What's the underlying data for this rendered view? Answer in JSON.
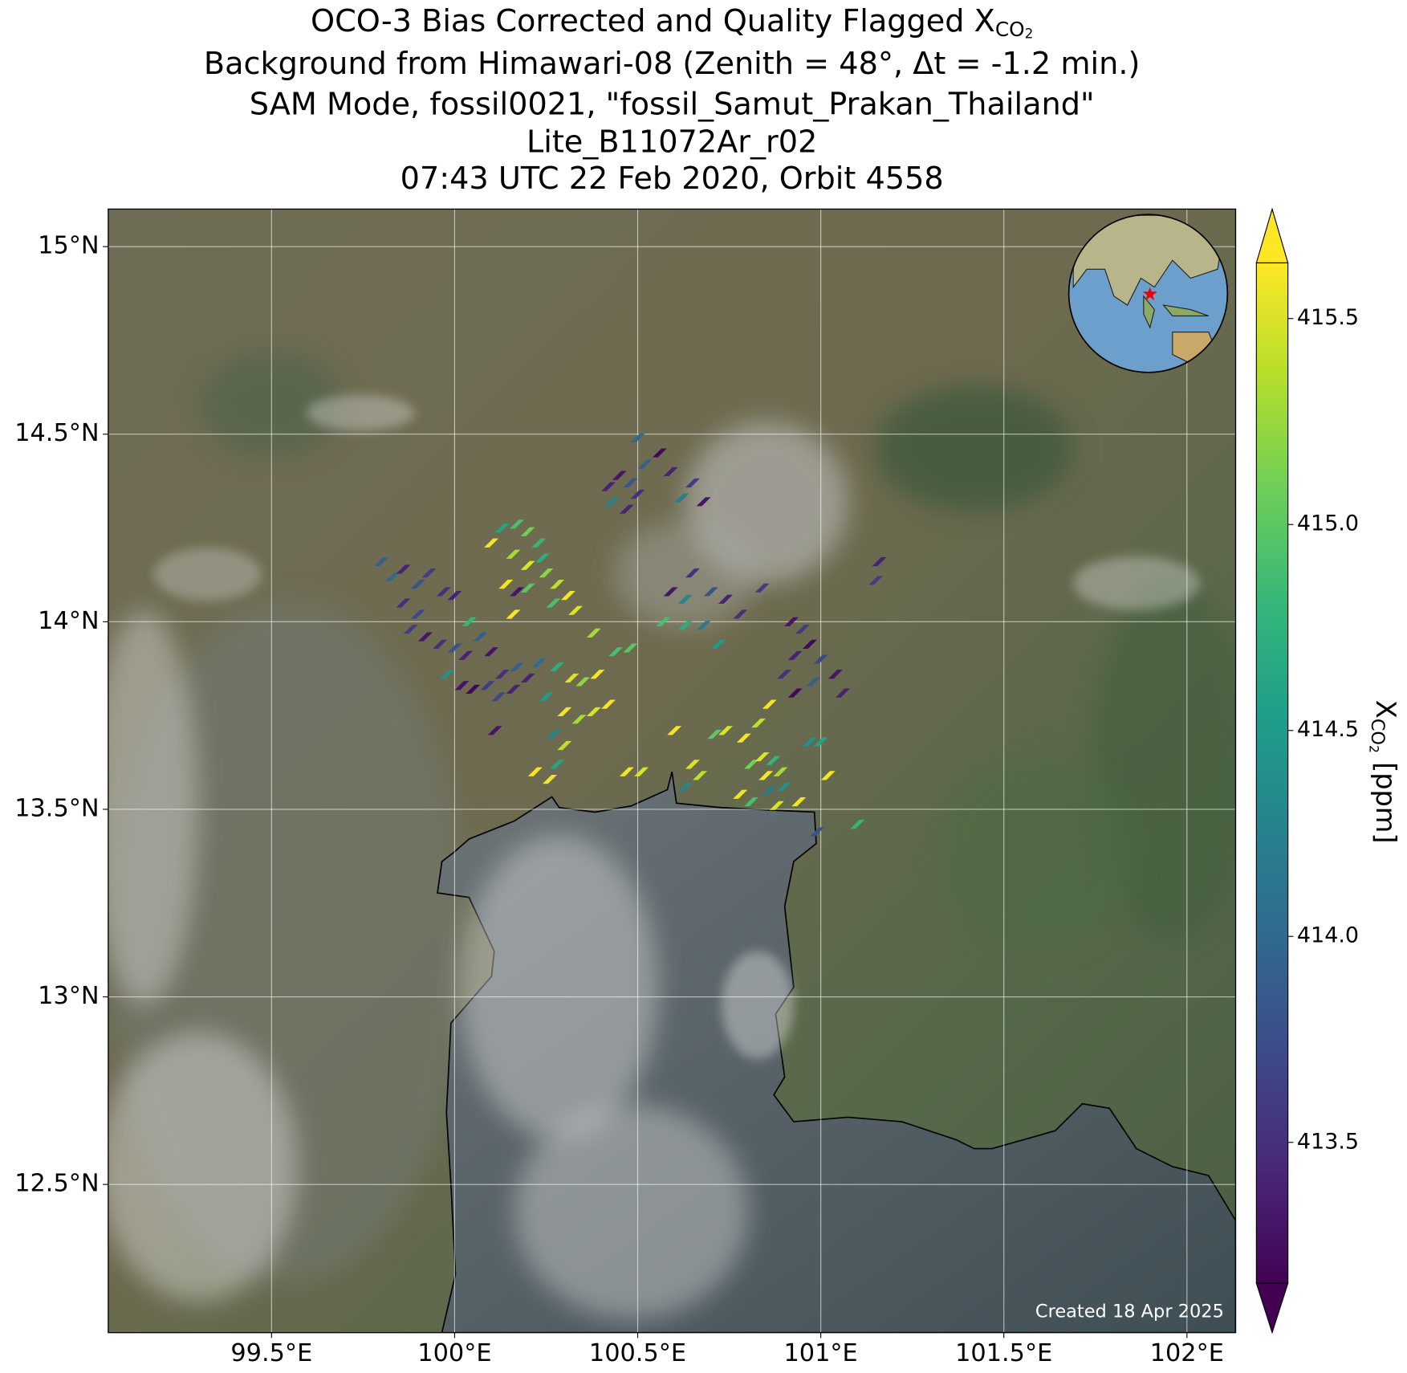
{
  "chart_data": {
    "type": "map",
    "title_lines": [
      {
        "text": "OCO-3 Bias Corrected and Quality Flagged X",
        "sub": "CO",
        "subsub": "2"
      },
      "Background from Himawari-08 (Zenith = 48°, Δt = -1.2 min.)",
      "SAM Mode, fossil0021, \"fossil_Samut_Prakan_Thailand\"",
      "Lite_B11072Ar_r02",
      "07:43 UTC 22 Feb 2020, Orbit 4558"
    ],
    "xlim": [
      99.054,
      102.133
    ],
    "ylim": [
      12.105,
      15.1
    ],
    "xticks": [
      {
        "value": 99.5,
        "label": "99.5°E"
      },
      {
        "value": 100,
        "label": "100°E"
      },
      {
        "value": 100.5,
        "label": "100.5°E"
      },
      {
        "value": 101,
        "label": "101°E"
      },
      {
        "value": 101.5,
        "label": "101.5°E"
      },
      {
        "value": 102,
        "label": "102°E"
      }
    ],
    "yticks": [
      {
        "value": 12.5,
        "label": "12.5°N"
      },
      {
        "value": 13,
        "label": "13°N"
      },
      {
        "value": 13.5,
        "label": "13.5°N"
      },
      {
        "value": 14,
        "label": "14°N"
      },
      {
        "value": 14.5,
        "label": "14.5°N"
      },
      {
        "value": 15,
        "label": "15°N"
      }
    ],
    "grid": true,
    "colorbar": {
      "clim": [
        413.158,
        415.635
      ],
      "ticks": [
        413.5,
        {
          "value": 414,
          "label": "414.0"
        },
        414.5,
        {
          "value": 415,
          "label": "415.0"
        },
        415.5
      ],
      "label": {
        "main": "X",
        "sub": "CO",
        "subsub": "2",
        "unit": "[ppm]"
      }
    },
    "annotation": "Created 18 Apr 2025",
    "soundings": {
      "lon": [
        99.8,
        99.83,
        99.86,
        99.9,
        99.93,
        99.97,
        100.0,
        99.86,
        99.9,
        100.04,
        99.88,
        99.92,
        99.96,
        100.0,
        100.03,
        100.07,
        100.1,
        99.98,
        100.02,
        100.05,
        100.09,
        100.13,
        100.17,
        100.2,
        100.23,
        100.12,
        100.16,
        100.11,
        100.1,
        100.13,
        100.17,
        100.2,
        100.23,
        100.16,
        100.2,
        100.24,
        100.14,
        100.17,
        100.2,
        100.25,
        100.28,
        100.31,
        100.33,
        100.27,
        100.16,
        100.38,
        100.28,
        100.32,
        100.35,
        100.39,
        100.25,
        100.3,
        100.34,
        100.38,
        100.42,
        100.27,
        100.3,
        100.28,
        100.22,
        100.26,
        100.48,
        100.44,
        100.42,
        100.45,
        100.48,
        100.5,
        100.43,
        100.47,
        100.52,
        100.56,
        100.59,
        100.62,
        100.65,
        100.68,
        100.5,
        100.59,
        100.63,
        100.65,
        100.7,
        100.74,
        100.78,
        100.84,
        100.57,
        100.63,
        100.68,
        100.72,
        100.92,
        100.95,
        100.97,
        100.93,
        101.0,
        100.9,
        100.98,
        101.04,
        101.06,
        100.93,
        100.47,
        100.51,
        100.6,
        100.65,
        100.67,
        100.63,
        100.71,
        100.74,
        100.79,
        100.83,
        100.86,
        100.81,
        100.84,
        100.87,
        100.85,
        100.89,
        100.86,
        100.9,
        100.78,
        100.81,
        100.88,
        100.94,
        100.97,
        101.0,
        101.02,
        101.16,
        101.15,
        101.1,
        100.99
      ],
      "lat": [
        14.16,
        14.12,
        14.14,
        14.1,
        14.13,
        14.08,
        14.07,
        14.05,
        14.02,
        14.0,
        13.98,
        13.96,
        13.94,
        13.93,
        13.91,
        13.96,
        13.92,
        13.86,
        13.83,
        13.82,
        13.83,
        13.86,
        13.88,
        13.85,
        13.89,
        13.8,
        13.82,
        13.71,
        14.21,
        14.25,
        14.26,
        14.24,
        14.21,
        14.18,
        14.15,
        14.17,
        14.1,
        14.08,
        14.09,
        14.13,
        14.1,
        14.07,
        14.03,
        14.05,
        14.02,
        13.97,
        13.88,
        13.85,
        13.84,
        13.86,
        13.8,
        13.76,
        13.74,
        13.76,
        13.78,
        13.7,
        13.67,
        13.62,
        13.6,
        13.58,
        13.93,
        13.92,
        14.36,
        14.39,
        14.37,
        14.34,
        14.32,
        14.3,
        14.42,
        14.45,
        14.4,
        14.33,
        14.37,
        14.32,
        14.49,
        14.08,
        14.06,
        14.13,
        14.08,
        14.06,
        14.02,
        14.09,
        14.0,
        13.99,
        13.99,
        13.94,
        14.0,
        13.98,
        13.94,
        13.91,
        13.9,
        13.86,
        13.84,
        13.86,
        13.81,
        13.81,
        13.6,
        13.6,
        13.71,
        13.62,
        13.59,
        13.56,
        13.7,
        13.71,
        13.69,
        13.73,
        13.78,
        13.62,
        13.64,
        13.63,
        13.59,
        13.6,
        13.55,
        13.56,
        13.54,
        13.52,
        13.51,
        13.52,
        13.68,
        13.68,
        13.59,
        14.16,
        14.11,
        13.46,
        13.44
      ],
      "xco2": [
        413.9,
        414.0,
        413.4,
        413.8,
        413.6,
        413.5,
        413.4,
        413.5,
        413.7,
        414.8,
        413.6,
        413.3,
        413.5,
        413.8,
        413.4,
        413.9,
        413.3,
        414.4,
        413.3,
        413.2,
        413.6,
        413.5,
        413.9,
        413.4,
        414.0,
        413.7,
        413.4,
        413.3,
        415.6,
        414.6,
        414.9,
        415.1,
        414.8,
        415.3,
        415.5,
        414.7,
        415.6,
        413.3,
        415.0,
        415.2,
        415.4,
        415.6,
        415.5,
        414.9,
        415.6,
        415.3,
        414.7,
        415.5,
        415.2,
        415.6,
        414.5,
        415.6,
        415.3,
        415.5,
        415.6,
        414.3,
        415.4,
        414.6,
        415.6,
        415.6,
        415.0,
        414.9,
        413.4,
        413.3,
        413.8,
        413.5,
        414.3,
        413.4,
        413.9,
        413.2,
        413.4,
        414.2,
        413.6,
        413.3,
        414.0,
        413.3,
        414.3,
        413.5,
        413.8,
        413.4,
        413.5,
        413.6,
        414.9,
        414.7,
        414.2,
        414.5,
        413.3,
        413.6,
        413.2,
        413.4,
        413.7,
        413.5,
        413.9,
        413.3,
        413.4,
        413.2,
        415.6,
        415.5,
        415.6,
        415.5,
        415.4,
        414.3,
        415.0,
        415.5,
        415.6,
        415.4,
        415.6,
        415.1,
        415.5,
        414.8,
        415.6,
        415.3,
        414.2,
        414.4,
        415.6,
        414.9,
        415.5,
        415.6,
        414.4,
        414.6,
        415.6,
        413.4,
        413.6,
        414.8,
        413.8
      ]
    }
  }
}
